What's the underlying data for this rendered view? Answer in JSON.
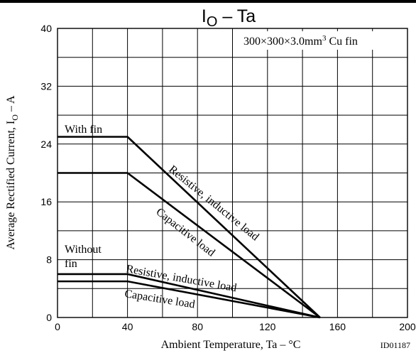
{
  "chart_data": {
    "type": "line",
    "title": {
      "main": "I",
      "sub": "O",
      "rest": " – Ta"
    },
    "condition": {
      "dims": "300×300×3.0mm",
      "exp": "3",
      "tail": " Cu fin"
    },
    "xlabel": "Ambient Temperature,  Ta  –  °C",
    "ylabel": {
      "main": "Average Rectified Current,  I",
      "sub": "O",
      "rest": "  –  A"
    },
    "doc_id": "ID01187",
    "xlim": [
      0,
      200
    ],
    "ylim": [
      0,
      40
    ],
    "xticks": [
      0,
      40,
      80,
      120,
      160,
      200
    ],
    "yticks": [
      0,
      8,
      16,
      24,
      32,
      40
    ],
    "grid": true,
    "group_labels": {
      "with_fin": "With fin",
      "without_fin_1": "Without",
      "without_fin_2": "fin"
    },
    "series": [
      {
        "name": "Resistive, inductive load",
        "group": "With fin",
        "x": [
          0,
          40,
          150
        ],
        "y": [
          25,
          25,
          0
        ]
      },
      {
        "name": "Capacitive load",
        "group": "With fin",
        "x": [
          0,
          40,
          150
        ],
        "y": [
          20,
          20,
          0
        ]
      },
      {
        "name": "Resistive, inductive load",
        "group": "Without fin",
        "x": [
          0,
          40,
          150
        ],
        "y": [
          6,
          6,
          0
        ]
      },
      {
        "name": "Capacitive load",
        "group": "Without fin",
        "x": [
          0,
          40,
          150
        ],
        "y": [
          5,
          5,
          0
        ]
      }
    ]
  }
}
